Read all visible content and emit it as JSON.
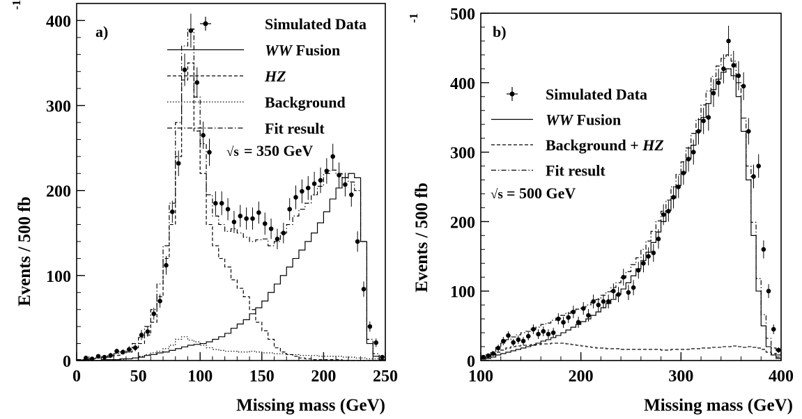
{
  "chart_data": [
    {
      "type": "line",
      "panel_label": "a)",
      "energy_label": "= 350 GeV",
      "sqrt_symbol": "√s",
      "xlabel": "Missing mass (GeV)",
      "ylabel_main": "Events / 500 fb",
      "ylabel_sup": "-1",
      "xlim": [
        0,
        250
      ],
      "ylim": [
        0,
        420
      ],
      "xticks": [
        0,
        50,
        100,
        150,
        200,
        250
      ],
      "yticks": [
        0,
        100,
        200,
        300,
        400
      ],
      "legend": {
        "position": "top-right",
        "entries": [
          {
            "key": "data",
            "label": "Simulated Data"
          },
          {
            "key": "ww",
            "label_italic": "WW",
            "label": " Fusion"
          },
          {
            "key": "hz",
            "label_italic": "HZ",
            "label": ""
          },
          {
            "key": "bkg",
            "label": "Background"
          },
          {
            "key": "fit",
            "label": "Fit result"
          }
        ]
      },
      "series": [
        {
          "name": "Simulated Data",
          "key": "data",
          "x": [
            7.5,
            12.5,
            17.5,
            22.5,
            27.5,
            32.5,
            37.5,
            42.5,
            47.5,
            52.5,
            57.5,
            62.5,
            67.5,
            72.5,
            77.5,
            82.5,
            87.5,
            92.5,
            97.5,
            102.5,
            107.5,
            112.5,
            117.5,
            122.5,
            127.5,
            132.5,
            137.5,
            142.5,
            147.5,
            152.5,
            157.5,
            162.5,
            167.5,
            172.5,
            177.5,
            182.5,
            187.5,
            192.5,
            197.5,
            202.5,
            207.5,
            212.5,
            217.5,
            222.5,
            227.5,
            232.5,
            237.5,
            242.5,
            247.5
          ],
          "y": [
            3,
            2,
            5,
            4,
            6,
            11,
            10,
            13,
            15,
            30,
            34,
            55,
            70,
            112,
            175,
            232,
            342,
            388,
            327,
            265,
            245,
            185,
            185,
            178,
            163,
            170,
            167,
            167,
            174,
            161,
            155,
            143,
            150,
            178,
            192,
            199,
            203,
            208,
            212,
            223,
            240,
            218,
            207,
            195,
            140,
            84,
            40,
            21,
            4
          ],
          "err": [
            2,
            2,
            2,
            2,
            3,
            3,
            3,
            4,
            4,
            6,
            6,
            7,
            8,
            11,
            13,
            15,
            19,
            20,
            18,
            16,
            16,
            14,
            14,
            13,
            13,
            13,
            13,
            13,
            13,
            13,
            12,
            12,
            12,
            13,
            14,
            14,
            14,
            14,
            15,
            15,
            15,
            15,
            14,
            14,
            12,
            9,
            6,
            5,
            2
          ]
        },
        {
          "name": "WW Fusion",
          "key": "ww",
          "x0": 0,
          "step": 5,
          "y": [
            0,
            0,
            0,
            0,
            1,
            1,
            1,
            2,
            2,
            3,
            4,
            6,
            7,
            9,
            10,
            12,
            14,
            16,
            18,
            19,
            20,
            22,
            25,
            28,
            32,
            38,
            43,
            48,
            55,
            62,
            70,
            80,
            90,
            100,
            110,
            120,
            130,
            140,
            150,
            162,
            175,
            190,
            203,
            215,
            220,
            215,
            140,
            20,
            5,
            1
          ]
        },
        {
          "name": "HZ",
          "key": "hz",
          "x0": 0,
          "step": 5,
          "y": [
            1,
            1,
            2,
            3,
            3,
            4,
            6,
            8,
            10,
            15,
            20,
            30,
            45,
            75,
            120,
            160,
            240,
            330,
            350,
            270,
            220,
            160,
            135,
            120,
            110,
            95,
            85,
            75,
            60,
            45,
            35,
            25,
            15,
            10,
            7,
            5,
            3,
            2,
            1,
            1,
            1,
            1,
            1,
            0,
            0,
            0,
            0,
            0,
            0,
            0
          ]
        },
        {
          "name": "Background",
          "key": "bkg",
          "x0": 0,
          "step": 5,
          "y": [
            0,
            0,
            0,
            0,
            0,
            1,
            1,
            1,
            2,
            3,
            5,
            7,
            9,
            11,
            14,
            18,
            25,
            28,
            24,
            22,
            18,
            15,
            13,
            12,
            11,
            11,
            10,
            10,
            11,
            10,
            9,
            9,
            8,
            8,
            7,
            7,
            6,
            6,
            6,
            5,
            5,
            5,
            5,
            4,
            4,
            3,
            3,
            2,
            2,
            1
          ]
        },
        {
          "name": "Fit result",
          "key": "fit",
          "x0": 0,
          "step": 5,
          "y": [
            1,
            1,
            2,
            3,
            4,
            6,
            8,
            10,
            13,
            20,
            27,
            40,
            60,
            90,
            135,
            185,
            280,
            370,
            390,
            310,
            255,
            195,
            170,
            160,
            152,
            155,
            150,
            145,
            140,
            142,
            143,
            135,
            140,
            150,
            160,
            170,
            178,
            185,
            195,
            205,
            220,
            224,
            220,
            215,
            210,
            200,
            140,
            25,
            8,
            2
          ]
        }
      ]
    },
    {
      "type": "line",
      "panel_label": "b)",
      "energy_label": "= 500 GeV",
      "sqrt_symbol": "√s",
      "xlabel": "Missing mass (GeV)",
      "ylabel_main": "Events / 500 fb",
      "ylabel_sup": "-1",
      "xlim": [
        100,
        400
      ],
      "ylim": [
        0,
        500
      ],
      "xticks": [
        100,
        200,
        300,
        400
      ],
      "yticks": [
        0,
        100,
        200,
        300,
        400,
        500
      ],
      "legend": {
        "position": "top-left",
        "entries": [
          {
            "key": "data",
            "label": "Simulated Data"
          },
          {
            "key": "ww",
            "label_italic": "WW",
            "label": " Fusion"
          },
          {
            "key": "bkg",
            "label": "Background + ",
            "label_italic_after": "HZ"
          },
          {
            "key": "fit",
            "label": "Fit result"
          }
        ]
      },
      "series": [
        {
          "name": "Simulated Data",
          "key": "data",
          "x": [
            102.5,
            107.5,
            112.5,
            117.5,
            122.5,
            127.5,
            132.5,
            137.5,
            142.5,
            147.5,
            152.5,
            157.5,
            162.5,
            167.5,
            172.5,
            177.5,
            182.5,
            187.5,
            192.5,
            197.5,
            202.5,
            207.5,
            212.5,
            217.5,
            222.5,
            227.5,
            232.5,
            237.5,
            242.5,
            247.5,
            252.5,
            257.5,
            262.5,
            267.5,
            272.5,
            277.5,
            282.5,
            287.5,
            292.5,
            297.5,
            302.5,
            307.5,
            312.5,
            317.5,
            322.5,
            327.5,
            332.5,
            337.5,
            342.5,
            347.5,
            352.5,
            357.5,
            362.5,
            367.5,
            372.5,
            377.5,
            382.5,
            387.5,
            392.5,
            397.5
          ],
          "y": [
            5,
            7,
            10,
            18,
            28,
            36,
            26,
            30,
            28,
            35,
            45,
            38,
            42,
            38,
            40,
            60,
            55,
            62,
            70,
            55,
            75,
            65,
            85,
            80,
            85,
            85,
            100,
            95,
            120,
            98,
            105,
            130,
            140,
            150,
            155,
            175,
            210,
            215,
            235,
            250,
            270,
            290,
            300,
            330,
            345,
            350,
            385,
            400,
            420,
            460,
            425,
            410,
            395,
            330,
            265,
            280,
            160,
            100,
            45,
            15
          ],
          "err": [
            3,
            3,
            3,
            5,
            6,
            6,
            5,
            6,
            6,
            6,
            7,
            7,
            7,
            7,
            7,
            8,
            8,
            8,
            9,
            8,
            9,
            9,
            10,
            10,
            10,
            10,
            11,
            11,
            12,
            11,
            11,
            12,
            13,
            13,
            13,
            14,
            15,
            15,
            16,
            16,
            17,
            18,
            18,
            19,
            19,
            19,
            20,
            20,
            21,
            22,
            21,
            21,
            20,
            19,
            17,
            17,
            13,
            10,
            7,
            4
          ]
        },
        {
          "name": "WW Fusion",
          "key": "ww",
          "x0": 100,
          "step": 5,
          "y": [
            2,
            3,
            5,
            8,
            10,
            12,
            14,
            16,
            18,
            20,
            22,
            25,
            28,
            30,
            33,
            36,
            40,
            44,
            48,
            52,
            56,
            60,
            65,
            70,
            76,
            82,
            88,
            95,
            103,
            112,
            122,
            132,
            144,
            156,
            170,
            185,
            200,
            216,
            234,
            252,
            270,
            290,
            310,
            330,
            350,
            370,
            390,
            405,
            415,
            420,
            410,
            380,
            330,
            260,
            180,
            100,
            50,
            20,
            8,
            3
          ]
        },
        {
          "name": "Background + HZ",
          "key": "bkg",
          "x0": 100,
          "step": 5,
          "y": [
            3,
            5,
            8,
            12,
            15,
            18,
            20,
            21,
            22,
            22,
            23,
            23,
            24,
            24,
            25,
            25,
            25,
            24,
            23,
            22,
            21,
            20,
            19,
            18,
            18,
            17,
            17,
            17,
            16,
            16,
            16,
            16,
            16,
            16,
            16,
            16,
            15,
            15,
            16,
            16,
            16,
            16,
            17,
            17,
            18,
            18,
            19,
            19,
            20,
            20,
            21,
            20,
            19,
            20,
            19,
            18,
            16,
            12,
            10,
            5
          ]
        },
        {
          "name": "Fit result",
          "key": "fit",
          "x0": 100,
          "step": 5,
          "y": [
            5,
            8,
            13,
            20,
            25,
            30,
            34,
            37,
            40,
            42,
            45,
            48,
            52,
            54,
            58,
            61,
            65,
            68,
            71,
            74,
            77,
            80,
            84,
            88,
            94,
            99,
            105,
            112,
            119,
            128,
            138,
            148,
            160,
            172,
            186,
            201,
            215,
            231,
            250,
            268,
            286,
            306,
            327,
            347,
            368,
            388,
            409,
            424,
            435,
            440,
            431,
            400,
            349,
            280,
            199,
            118,
            66,
            32,
            18,
            8
          ]
        }
      ]
    }
  ]
}
